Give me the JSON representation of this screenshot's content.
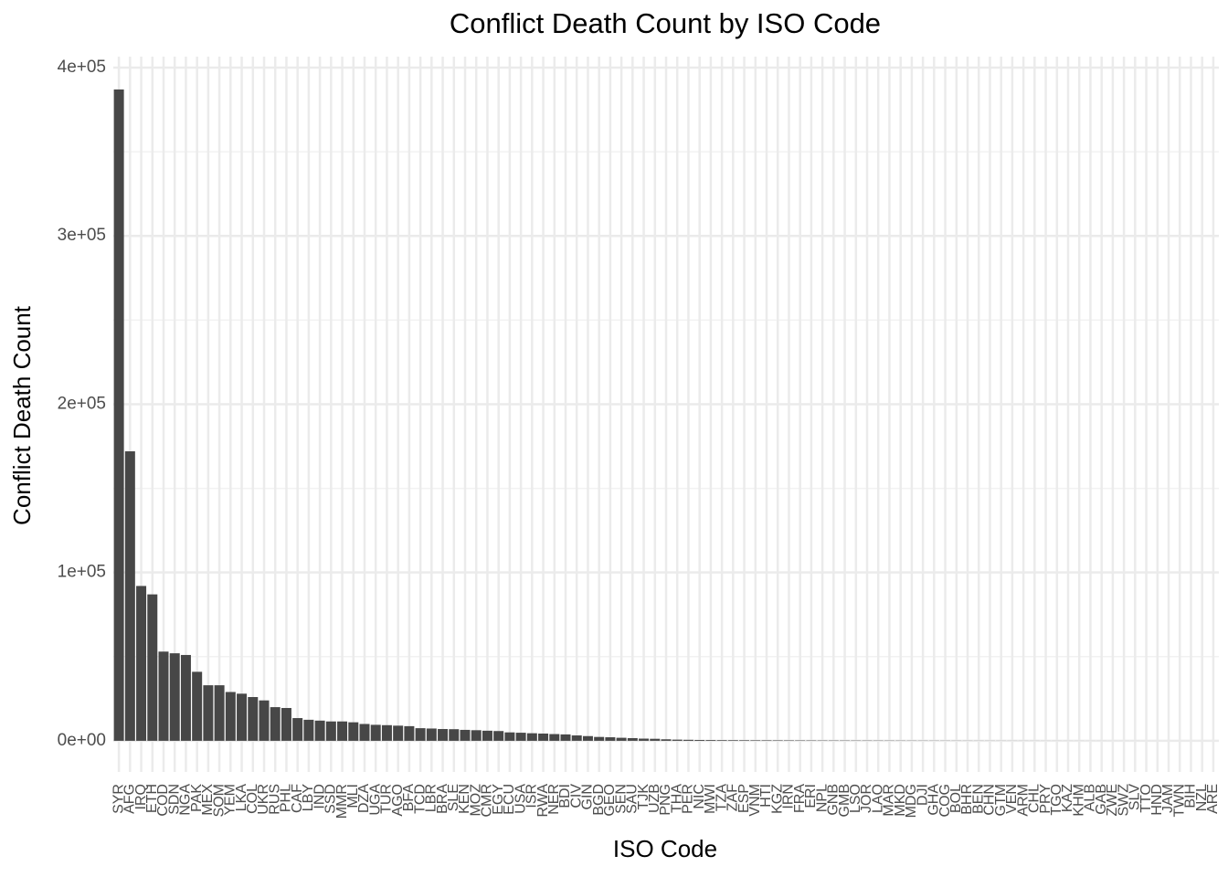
{
  "chart_data": {
    "type": "bar",
    "title": "Conflict Death Count by ISO Code",
    "x_label": "ISO Code",
    "y_label": "Conflict Death Count",
    "categories": [
      "SYR",
      "AFG",
      "IRQ",
      "ETH",
      "COD",
      "SDN",
      "NGA",
      "PAK",
      "MEX",
      "SOM",
      "YEM",
      "LKA",
      "COL",
      "UKR",
      "RUS",
      "PHL",
      "CAF",
      "LBY",
      "IND",
      "SSD",
      "MMR",
      "MLI",
      "DZA",
      "UGA",
      "TUR",
      "AGO",
      "BFA",
      "TCD",
      "LBR",
      "BRA",
      "SLE",
      "KEN",
      "MOZ",
      "CMR",
      "EGY",
      "ECU",
      "USA",
      "ISR",
      "RWA",
      "NER",
      "BDI",
      "CIV",
      "GIN",
      "BGD",
      "GEO",
      "SEN",
      "SAU",
      "TJK",
      "UZB",
      "PNG",
      "THA",
      "PER",
      "NIC",
      "MWI",
      "TZA",
      "ZAF",
      "ESP",
      "VNM",
      "HTI",
      "KGZ",
      "IRN",
      "FRA",
      "ERI",
      "NPL",
      "GNB",
      "GMB",
      "LSO",
      "JOR",
      "LAO",
      "MAR",
      "MKD",
      "MDG",
      "DJI",
      "GHA",
      "COG",
      "BOL",
      "BHR",
      "BEN",
      "CHN",
      "GTM",
      "VEN",
      "ARM",
      "CHL",
      "PRY",
      "TGO",
      "KAZ",
      "KHM",
      "ALB",
      "GAB",
      "ZWE",
      "SWZ",
      "SLV",
      "TTO",
      "HND",
      "JAM",
      "TWN",
      "BIH",
      "NZL",
      "ARE"
    ],
    "values": [
      387000,
      172000,
      92000,
      87000,
      53000,
      52000,
      51000,
      41000,
      33000,
      33000,
      29000,
      28000,
      26000,
      24000,
      20000,
      19500,
      13500,
      12500,
      12000,
      11500,
      11500,
      11000,
      10000,
      9500,
      9300,
      9000,
      8700,
      7500,
      7300,
      7000,
      6900,
      6500,
      6300,
      6000,
      5800,
      5000,
      4800,
      4500,
      4300,
      4000,
      3800,
      3200,
      2800,
      2300,
      2100,
      1800,
      1600,
      1300,
      1200,
      900,
      700,
      600,
      500,
      450,
      400,
      380,
      350,
      320,
      300,
      280,
      260,
      240,
      220,
      200,
      190,
      180,
      170,
      160,
      150,
      140,
      130,
      120,
      110,
      100,
      90,
      80,
      70,
      60,
      55,
      50,
      45,
      40,
      35,
      30,
      27,
      24,
      21,
      18,
      15,
      12,
      10,
      8,
      6,
      5,
      4,
      3,
      2,
      2,
      1
    ],
    "color": "#474747",
    "ylim": [
      -18500,
      406500
    ],
    "yticks": [
      {
        "value": 0,
        "label": "0e+00"
      },
      {
        "value": 100000,
        "label": "1e+05"
      },
      {
        "value": 200000,
        "label": "2e+05"
      },
      {
        "value": 300000,
        "label": "3e+05"
      },
      {
        "value": 400000,
        "label": "4e+05"
      }
    ],
    "grid": true
  }
}
